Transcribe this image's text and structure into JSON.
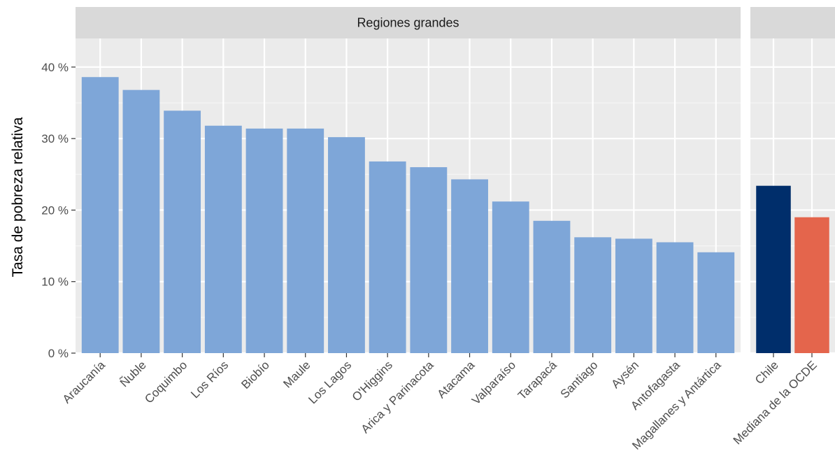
{
  "chart_data": {
    "type": "bar",
    "ylabel": "Tasa de pobreza relativa",
    "xlabel": "",
    "ylim": [
      0,
      44
    ],
    "y_ticks": [
      0,
      10,
      20,
      30,
      40
    ],
    "y_tick_labels": [
      "0 %",
      "10 %",
      "20 %",
      "30 %",
      "40 %"
    ],
    "grid": true,
    "legend": "none",
    "colors": {
      "panel_background": "#ebebeb",
      "strip_background": "#d9d9d9",
      "grid_major": "#ffffff",
      "grid_minor": "#f5f5f5"
    },
    "panels": [
      {
        "strip_label": "Regiones grandes",
        "categories": [
          "Araucanía",
          "Ñuble",
          "Coquimbo",
          "Los Ríos",
          "Biobío",
          "Maule",
          "Los Lagos",
          "O'Higgins",
          "Arica y Parinacota",
          "Atacama",
          "Valparaíso",
          "Tarapacá",
          "Santiago",
          "Aysén",
          "Antofagasta",
          "Magallanes y Antártica"
        ],
        "values": [
          38.6,
          36.8,
          33.9,
          31.8,
          31.4,
          31.4,
          30.2,
          26.8,
          26.0,
          24.3,
          21.2,
          18.5,
          16.2,
          16.0,
          15.5,
          14.1
        ],
        "colors": [
          "#7ea6d8",
          "#7ea6d8",
          "#7ea6d8",
          "#7ea6d8",
          "#7ea6d8",
          "#7ea6d8",
          "#7ea6d8",
          "#7ea6d8",
          "#7ea6d8",
          "#7ea6d8",
          "#7ea6d8",
          "#7ea6d8",
          "#7ea6d8",
          "#7ea6d8",
          "#7ea6d8",
          "#7ea6d8"
        ]
      },
      {
        "strip_label": "",
        "categories": [
          "Chile",
          "Mediana de la OCDE"
        ],
        "values": [
          23.4,
          19.0
        ],
        "colors": [
          "#002e6b",
          "#e4654c"
        ]
      }
    ]
  }
}
